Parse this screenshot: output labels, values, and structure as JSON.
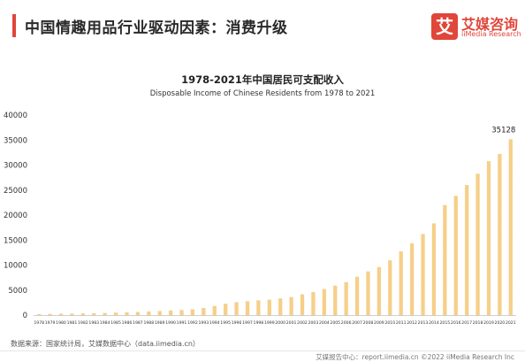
{
  "header": {
    "title": "中国情趣用品行业驱动因素：消费升级",
    "logo_mark": "艾",
    "logo_cn": "艾媒咨询",
    "logo_en": "iiMedia Research"
  },
  "colors": {
    "accent": "#e0463a",
    "bar": "#f6cf88",
    "axis": "#cfcfcf"
  },
  "chart_data": {
    "type": "bar",
    "title": "1978-2021年中国居民可支配收入",
    "subtitle": "Disposable Income of Chinese Residents from 1978 to 2021",
    "xlabel": "",
    "ylabel": "",
    "ylim": [
      0,
      40000
    ],
    "yticks": [
      0,
      5000,
      10000,
      15000,
      20000,
      25000,
      30000,
      35000,
      40000
    ],
    "categories": [
      "1978",
      "1979",
      "1980",
      "1981",
      "1982",
      "1983",
      "1984",
      "1985",
      "1986",
      "1987",
      "1988",
      "1989",
      "1990",
      "1991",
      "1992",
      "1993",
      "1994",
      "1995",
      "1996",
      "1997",
      "1998",
      "1999",
      "2000",
      "2001",
      "2002",
      "2003",
      "2004",
      "2005",
      "2006",
      "2007",
      "2008",
      "2009",
      "2010",
      "2011",
      "2012",
      "2013",
      "2014",
      "2015",
      "2016",
      "2017",
      "2018",
      "2019",
      "2020",
      "2021"
    ],
    "values": [
      171,
      212,
      247,
      272,
      313,
      342,
      402,
      478,
      546,
      602,
      703,
      788,
      904,
      976,
      1125,
      1385,
      1800,
      2234,
      2559,
      2741,
      2914,
      3049,
      3300,
      3587,
      4133,
      4575,
      5178,
      5856,
      6555,
      7648,
      8707,
      9575,
      10932,
      12719,
      14330,
      16190,
      18311,
      21966,
      23821,
      25974,
      28228,
      30733,
      32189,
      35128
    ],
    "data_labels": [
      {
        "category": "2021",
        "text": "35128"
      }
    ],
    "grid": false,
    "legend": "none"
  },
  "footer": {
    "source": "数据来源：国家统计局，艾媒数据中心（data.iimedia.cn）",
    "report": "艾媒报告中心：report.iimedia.cn ©2022  iiMedia Research Inc"
  }
}
